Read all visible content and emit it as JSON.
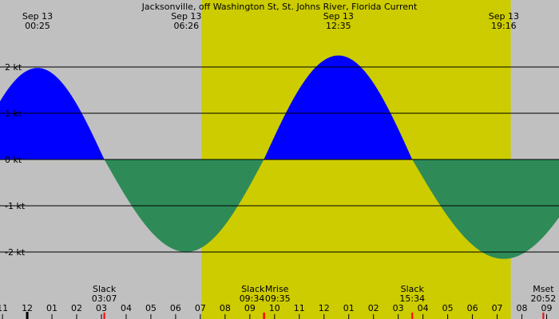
{
  "chart_data": {
    "type": "area",
    "title": "Jacksonville, off Washington St, St. Johns River, Florida Current",
    "unit": "kt",
    "ylim": [
      -3.45,
      3.45
    ],
    "y_ticks": [
      {
        "value": 2,
        "label": "2 kt"
      },
      {
        "value": 1,
        "label": "1 kt"
      },
      {
        "value": 0,
        "label": "0 kt"
      },
      {
        "value": -1,
        "label": "-1 kt"
      },
      {
        "value": -2,
        "label": "-2 kt"
      }
    ],
    "x_hours": [
      {
        "t": -1,
        "label": "11"
      },
      {
        "t": 0,
        "label": "12"
      },
      {
        "t": 1,
        "label": "01"
      },
      {
        "t": 2,
        "label": "02"
      },
      {
        "t": 3,
        "label": "03"
      },
      {
        "t": 4,
        "label": "04"
      },
      {
        "t": 5,
        "label": "05"
      },
      {
        "t": 6,
        "label": "06"
      },
      {
        "t": 7,
        "label": "07"
      },
      {
        "t": 8,
        "label": "08"
      },
      {
        "t": 9,
        "label": "09"
      },
      {
        "t": 10,
        "label": "10"
      },
      {
        "t": 11,
        "label": "11"
      },
      {
        "t": 12,
        "label": "12"
      },
      {
        "t": 13,
        "label": "01"
      },
      {
        "t": 14,
        "label": "02"
      },
      {
        "t": 15,
        "label": "03"
      },
      {
        "t": 16,
        "label": "04"
      },
      {
        "t": 17,
        "label": "05"
      },
      {
        "t": 18,
        "label": "06"
      },
      {
        "t": 19,
        "label": "07"
      },
      {
        "t": 20,
        "label": "08"
      },
      {
        "t": 21,
        "label": "09"
      }
    ],
    "top_events": [
      {
        "date": "Sep 13",
        "time": "00:25",
        "t": 0.417,
        "kind": "max flood",
        "value": 1.98
      },
      {
        "date": "Sep 13",
        "time": "06:26",
        "t": 6.433,
        "kind": "max ebb",
        "value": -2.0
      },
      {
        "date": "Sep 13",
        "time": "12:35",
        "t": 12.583,
        "kind": "max flood",
        "value": 2.25
      },
      {
        "date": "Sep 13",
        "time": "19:16",
        "t": 19.267,
        "kind": "max ebb",
        "value": -2.15
      }
    ],
    "bottom_events": [
      {
        "label": "Slack",
        "time": "03:07",
        "t": 3.117
      },
      {
        "label": "Slack",
        "time": "09:34",
        "t": 9.567
      },
      {
        "label": "Mrise",
        "time": "09:35",
        "t": 9.583
      },
      {
        "label": "Slack",
        "time": "15:34",
        "t": 15.567
      },
      {
        "label": "Mset",
        "time": "20:52",
        "t": 20.867
      }
    ],
    "daylight": {
      "start": 7.05,
      "end": 19.55
    },
    "x_range": [
      -1.1,
      21.5
    ],
    "grid": true
  },
  "colors": {
    "night": "#c0c0c0",
    "day": "#cccc00",
    "flood": "#0000ff",
    "ebb": "#2e8b57",
    "gridline": "#000000",
    "event_marker": "#ff0000"
  }
}
